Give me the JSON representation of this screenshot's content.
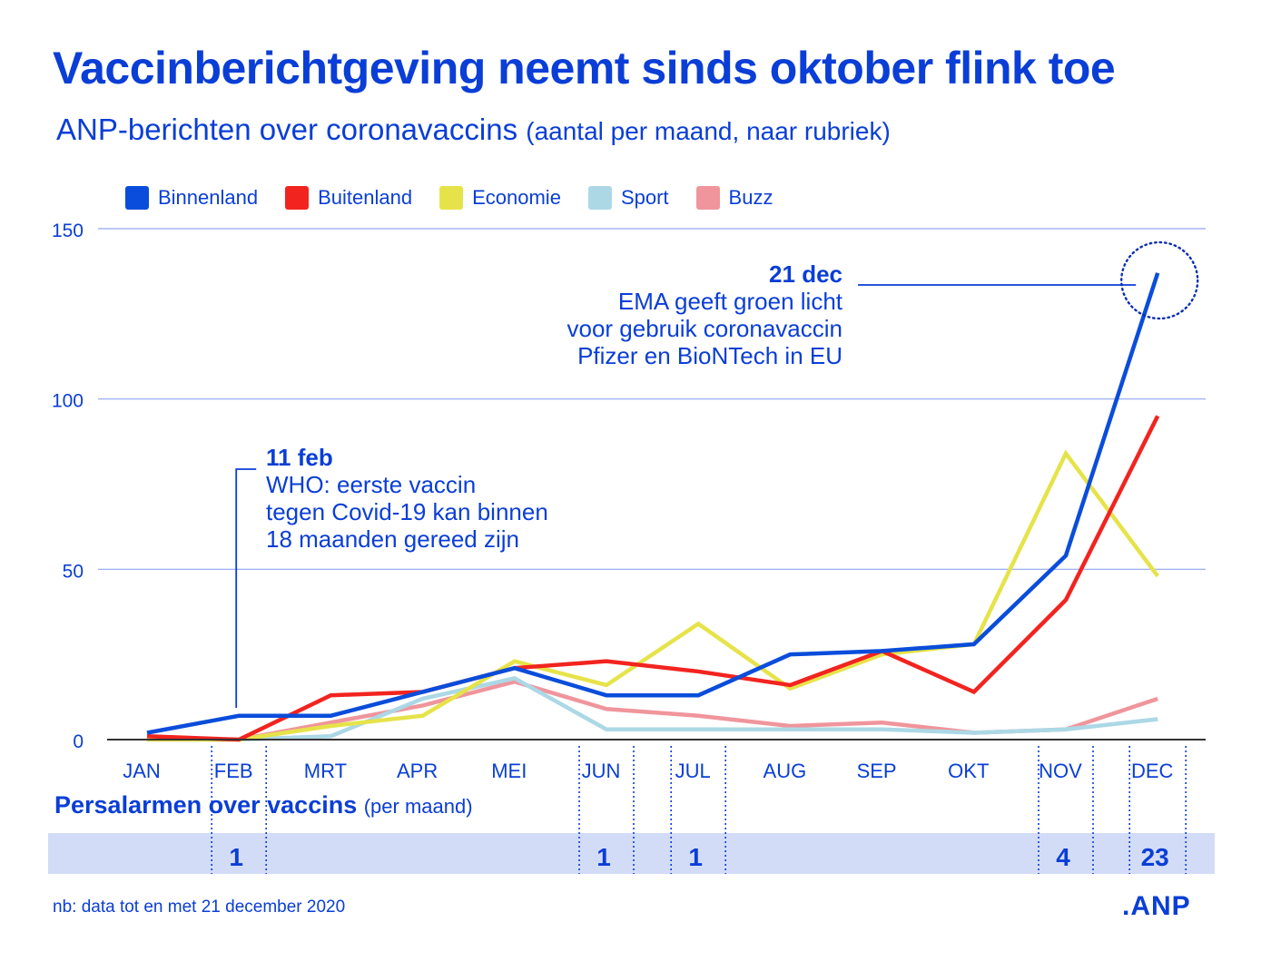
{
  "title": "Vaccinberichtgeving neemt sinds oktober flink toe",
  "subtitle_main": "ANP-berichten over coronavaccins",
  "subtitle_detail": "(aantal per maand, naar rubriek)",
  "annotations": [
    {
      "date": "11 feb",
      "lines": [
        "WHO: eerste vaccin",
        "tegen Covid-19 kan binnen",
        "18 maanden gereed zijn"
      ],
      "month_index": 1
    },
    {
      "date": "21 dec",
      "lines": [
        "EMA geeft groen licht",
        "voor gebruik coronavaccin",
        "Pfizer en BioNTech in EU"
      ],
      "month_index": 11
    }
  ],
  "alarms": {
    "title": "Persalarmen over vaccins",
    "title_detail": "(per maand)",
    "values": [
      null,
      1,
      null,
      null,
      null,
      1,
      1,
      null,
      null,
      null,
      4,
      23
    ]
  },
  "footnote": "nb: data tot en met 21 december 2020",
  "logo": ".ANP",
  "colors": {
    "text": "#0a3ed6",
    "grid": "#8fa6ef",
    "alarm_band": "#d3dcf7",
    "axis": "#333333"
  },
  "chart_data": {
    "type": "line",
    "title": "Vaccinberichtgeving neemt sinds oktober flink toe",
    "subtitle": "ANP-berichten over coronavaccins (aantal per maand, naar rubriek)",
    "xlabel": "",
    "ylabel": "",
    "categories": [
      "JAN",
      "FEB",
      "MRT",
      "APR",
      "MEI",
      "JUN",
      "JUL",
      "AUG",
      "SEP",
      "OKT",
      "NOV",
      "DEC"
    ],
    "yticks": [
      0,
      50,
      100,
      150
    ],
    "ylim": [
      0,
      150
    ],
    "grid": true,
    "legend_position": "top-left",
    "series": [
      {
        "name": "Buzz",
        "color": "#f0959c",
        "values": [
          0,
          0,
          5,
          10,
          17,
          9,
          7,
          4,
          5,
          2,
          3,
          12
        ]
      },
      {
        "name": "Sport",
        "color": "#acd8e6",
        "values": [
          0,
          0,
          1,
          12,
          18,
          3,
          3,
          3,
          3,
          2,
          3,
          6
        ]
      },
      {
        "name": "Economie",
        "color": "#e6e34a",
        "values": [
          0,
          0,
          4,
          7,
          23,
          16,
          34,
          15,
          25,
          28,
          84,
          48
        ]
      },
      {
        "name": "Buitenland",
        "color": "#f2241f",
        "values": [
          1,
          0,
          13,
          14,
          21,
          23,
          20,
          16,
          26,
          14,
          41,
          95
        ]
      },
      {
        "name": "Binnenland",
        "color": "#0a4ddb",
        "values": [
          2,
          7,
          7,
          14,
          21,
          13,
          13,
          25,
          26,
          28,
          54,
          137
        ]
      }
    ],
    "legend_order": [
      "Binnenland",
      "Buitenland",
      "Economie",
      "Sport",
      "Buzz"
    ]
  }
}
